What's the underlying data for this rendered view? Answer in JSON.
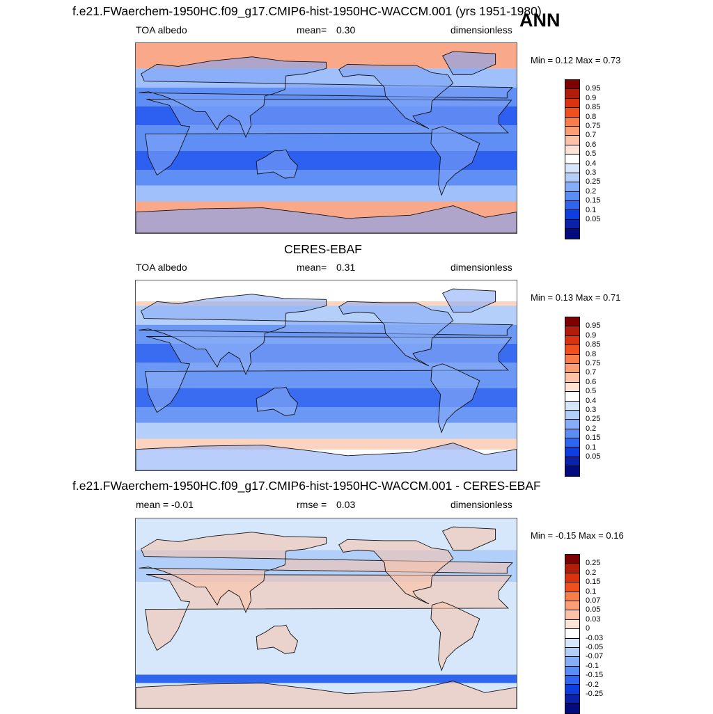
{
  "season": "ANN",
  "panels": [
    {
      "title": "f.e21.FWaerchem-1950HC.f09_g17.CMIP6-hist-1950HC-WACCM.001 (yrs 1951-1980)",
      "left_label": "TOA albedo",
      "stat_label": "mean=",
      "stat_value": "0.30",
      "units": "dimensionless",
      "minmax": "Min =   0.12 Max =   0.73",
      "colorbar": {
        "labels": [
          "0.95",
          "0.9",
          "0.85",
          "0.8",
          "0.75",
          "0.7",
          "0.6",
          "0.5",
          "0.4",
          "0.3",
          "0.25",
          "0.2",
          "0.15",
          "0.1",
          "0.05"
        ],
        "colors": [
          "#7f0000",
          "#b21c0a",
          "#d9330f",
          "#f0501e",
          "#f87d4b",
          "#fb9e76",
          "#fcc2a8",
          "#fde3d5",
          "#ffffff",
          "#d6e6fb",
          "#b2cffa",
          "#86aef7",
          "#5b8ef4",
          "#2f66f0",
          "#0e3ee0",
          "#0a22a8",
          "#030b7e"
        ]
      },
      "map_colors": {
        "ocean": "#5f8ff5",
        "cloud": "#9fc0fa",
        "land": "#7da4f6",
        "deep": "#2d5ff0",
        "polar": "#f9a98a"
      }
    },
    {
      "title": "CERES-EBAF",
      "left_label": "TOA albedo",
      "stat_label": "mean=",
      "stat_value": "0.31",
      "units": "dimensionless",
      "minmax": "Min =   0.13 Max =   0.71",
      "colorbar": {
        "labels": [
          "0.95",
          "0.9",
          "0.85",
          "0.8",
          "0.75",
          "0.7",
          "0.6",
          "0.5",
          "0.4",
          "0.3",
          "0.25",
          "0.2",
          "0.15",
          "0.1",
          "0.05"
        ],
        "colors": [
          "#7f0000",
          "#b21c0a",
          "#d9330f",
          "#f0501e",
          "#f87d4b",
          "#fb9e76",
          "#fcc2a8",
          "#fde3d5",
          "#ffffff",
          "#d6e6fb",
          "#b2cffa",
          "#86aef7",
          "#5b8ef4",
          "#2f66f0",
          "#0e3ee0",
          "#0a22a8",
          "#030b7e"
        ]
      },
      "map_colors": {
        "ocean": "#6c98f5",
        "cloud": "#b4cffa",
        "land": "#8aaef7",
        "deep": "#3a6cf1",
        "polar": "#fbd3bf"
      }
    },
    {
      "title": "f.e21.FWaerchem-1950HC.f09_g17.CMIP6-hist-1950HC-WACCM.001 - CERES-EBAF",
      "left_label": "mean =  -0.01",
      "stat_label": "rmse =",
      "stat_value": "0.03",
      "units": "dimensionless",
      "minmax": "Min =  -0.15 Max =   0.16",
      "colorbar": {
        "labels": [
          "0.25",
          "0.2",
          "0.15",
          "0.1",
          "0.07",
          "0.05",
          "0.03",
          "0",
          "-0.03",
          "-0.05",
          "-0.07",
          "-0.1",
          "-0.15",
          "-0.2",
          "-0.25"
        ],
        "colors": [
          "#7f0000",
          "#b21c0a",
          "#d9330f",
          "#f0501e",
          "#f87d4b",
          "#fb9e76",
          "#fcc2a8",
          "#fde3d5",
          "#ffffff",
          "#d6e6fb",
          "#b2cffa",
          "#86aef7",
          "#5b8ef4",
          "#2f66f0",
          "#0e3ee0",
          "#0a22a8",
          "#030b7e"
        ]
      },
      "map_colors": {
        "ocean": "#d6e6fb",
        "cloud": "#b2cffa",
        "land": "#fcc2a8",
        "deep": "#5b8ef4",
        "polar": "#2f66f0"
      }
    }
  ]
}
